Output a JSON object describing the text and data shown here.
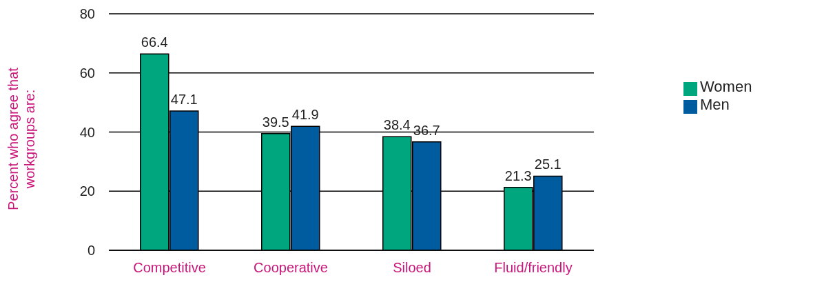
{
  "chart_data": {
    "type": "bar",
    "ylabel": "Percent  who agree that\nworkgroups are:",
    "categories": [
      "Competitive",
      "Cooperative",
      "Siloed",
      "Fluid/friendly"
    ],
    "series": [
      {
        "name": "Women",
        "color": "#00a67e",
        "values": [
          66.4,
          39.5,
          38.4,
          21.3
        ]
      },
      {
        "name": "Men",
        "color": "#005b9f",
        "values": [
          47.1,
          41.9,
          36.7,
          25.1
        ]
      }
    ],
    "ylim": [
      0,
      80
    ],
    "yticks": [
      0,
      20,
      40,
      60,
      80
    ],
    "grid": "y",
    "legend": "right",
    "data_labels": true
  }
}
